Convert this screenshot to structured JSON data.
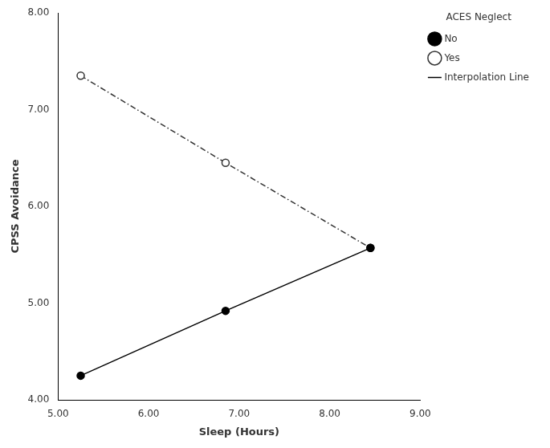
{
  "chart_data": {
    "type": "line",
    "xlabel": "Sleep (Hours)",
    "ylabel": "CPSS Avoidance",
    "legend_title": "ACES Neglect",
    "x": [
      5.25,
      6.85,
      8.45
    ],
    "series": [
      {
        "name": "No",
        "color": "#000000",
        "marker": "filled_circle",
        "line_style": "solid",
        "values": [
          4.25,
          4.92,
          5.57
        ]
      },
      {
        "name": "Yes",
        "color": "#333333",
        "marker": "open_circle",
        "line_style": "dashdot",
        "values": [
          7.35,
          6.45,
          5.57
        ]
      },
      {
        "name": "Interpolation Line",
        "color": "#000000",
        "marker": "none",
        "line_style": "solid",
        "values": [
          null,
          null,
          null
        ]
      }
    ],
    "xlim": [
      5.0,
      9.0
    ],
    "ylim": [
      4.0,
      8.0
    ],
    "xticks": [
      {
        "value": 5.0,
        "label": "5.00"
      },
      {
        "value": 6.0,
        "label": "6.00"
      },
      {
        "value": 7.0,
        "label": "7.00"
      },
      {
        "value": 8.0,
        "label": "8.00"
      },
      {
        "value": 9.0,
        "label": "9.00"
      }
    ],
    "yticks": [
      {
        "value": 4.0,
        "label": "4.00"
      },
      {
        "value": 5.0,
        "label": "5.00"
      },
      {
        "value": 6.0,
        "label": "6.00"
      },
      {
        "value": 7.0,
        "label": "7.00"
      },
      {
        "value": 8.0,
        "label": "8.00"
      }
    ],
    "grid": false,
    "legend": "right"
  }
}
